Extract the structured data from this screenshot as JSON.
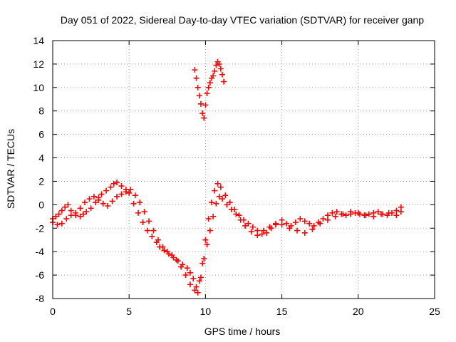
{
  "chart_data": {
    "type": "scatter",
    "title": "Day 051 of 2022, Sidereal Day-to-day VTEC variation (SDTVAR) for receiver ganp",
    "xlabel": "GPS time / hours",
    "ylabel": "SDTVAR / TECUs",
    "xlim": [
      0,
      25
    ],
    "ylim": [
      -8,
      14
    ],
    "xticks": [
      0,
      5,
      10,
      15,
      20,
      25
    ],
    "yticks": [
      -8,
      -6,
      -4,
      -2,
      0,
      2,
      4,
      6,
      8,
      10,
      12,
      14
    ],
    "grid": true,
    "marker": "+",
    "series": [
      {
        "name": "SDTVAR",
        "color": "#ff0000",
        "x": [
          0.0,
          0.2,
          0.4,
          0.6,
          0.8,
          1.0,
          1.2,
          1.5,
          1.8,
          2.0,
          2.2,
          2.5,
          2.8,
          3.0,
          3.2,
          3.5,
          3.8,
          4.0,
          4.2,
          4.5,
          4.8,
          5.0,
          5.3,
          5.6,
          5.9,
          6.2,
          6.5,
          6.8,
          7.0,
          7.3,
          7.6,
          7.9,
          8.2,
          8.5,
          8.8,
          9.0,
          9.2,
          9.4,
          9.6,
          9.8,
          10.0,
          10.2,
          10.4,
          10.6,
          10.8,
          11.0,
          11.3,
          11.6,
          11.9,
          12.2,
          12.5,
          12.8,
          13.1,
          13.4,
          13.7,
          14.0,
          14.3,
          14.6,
          15.0,
          15.3,
          15.6,
          15.9,
          16.2,
          16.5,
          16.8,
          17.1,
          17.4,
          17.7,
          18.0,
          18.3,
          18.6,
          18.9,
          19.2,
          19.5,
          19.8,
          20.1,
          20.4,
          20.7,
          21.0,
          21.3,
          21.6,
          21.9,
          22.2,
          22.5,
          22.8,
          0.0,
          0.3,
          0.6,
          0.9,
          1.2,
          1.5,
          1.8,
          2.1,
          2.4,
          2.7,
          3.0,
          3.3,
          3.6,
          3.9,
          4.2,
          4.5,
          4.8,
          5.1,
          5.4,
          5.7,
          6.0,
          6.3,
          6.6,
          6.9,
          7.2,
          7.5,
          7.8,
          8.1,
          8.4,
          8.7,
          9.0,
          9.3,
          9.5,
          9.7,
          9.9,
          10.1,
          10.3,
          10.5,
          10.7,
          10.9,
          11.1,
          11.4,
          11.7,
          12.0,
          12.3,
          12.6,
          13.0,
          13.4,
          13.8,
          14.2,
          14.6,
          15.0,
          15.5,
          16.0,
          16.5,
          17.0,
          17.5,
          18.0,
          18.5,
          19.0,
          19.5,
          20.0,
          20.5,
          21.0,
          21.5,
          22.0,
          22.5,
          22.8,
          9.3,
          9.4,
          9.5,
          9.6,
          9.7,
          9.8,
          9.9,
          10.0,
          10.1,
          10.2,
          10.3,
          10.4,
          10.5,
          10.6,
          10.7,
          10.8,
          10.9,
          11.0,
          11.1,
          11.2
        ],
        "y": [
          -1.2,
          -1.0,
          -0.8,
          -0.5,
          -0.2,
          0.0,
          -0.5,
          -0.9,
          -1.0,
          -0.8,
          -0.6,
          -0.3,
          0.2,
          0.6,
          0.9,
          1.2,
          1.5,
          1.8,
          1.9,
          1.6,
          1.3,
          1.0,
          0.1,
          -0.7,
          -1.5,
          -2.2,
          -2.7,
          -3.2,
          -3.6,
          -3.9,
          -4.2,
          -4.5,
          -4.8,
          -5.1,
          -5.4,
          -5.8,
          -6.3,
          -7.0,
          -6.5,
          -5.0,
          -3.0,
          -1.2,
          0.2,
          1.2,
          1.8,
          1.5,
          0.8,
          0.2,
          -0.4,
          -0.9,
          -1.3,
          -1.6,
          -1.9,
          -2.2,
          -2.5,
          -2.4,
          -2.0,
          -1.7,
          -1.3,
          -1.6,
          -1.8,
          -1.5,
          -1.2,
          -1.4,
          -1.6,
          -1.8,
          -1.5,
          -1.2,
          -0.9,
          -0.7,
          -0.6,
          -0.8,
          -0.9,
          -0.8,
          -0.7,
          -0.8,
          -0.9,
          -0.8,
          -0.7,
          -0.6,
          -0.8,
          -0.9,
          -0.7,
          -0.5,
          -0.2,
          -1.5,
          -1.7,
          -1.6,
          -1.2,
          -0.9,
          -0.7,
          -0.3,
          0.2,
          0.5,
          0.7,
          0.4,
          0.1,
          -0.1,
          0.3,
          0.7,
          0.9,
          1.1,
          1.3,
          0.8,
          0.2,
          -0.6,
          -1.4,
          -2.2,
          -3.0,
          -3.6,
          -4.0,
          -4.3,
          -4.7,
          -5.3,
          -6.0,
          -6.8,
          -7.3,
          -7.5,
          -6.2,
          -4.6,
          -3.4,
          -2.2,
          -1.0,
          0.1,
          0.7,
          0.5,
          0.0,
          -0.4,
          -0.8,
          -1.3,
          -1.8,
          -2.3,
          -2.6,
          -2.2,
          -1.9,
          -1.6,
          -1.7,
          -2.0,
          -2.2,
          -2.4,
          -2.1,
          -1.6,
          -1.3,
          -1.0,
          -0.8,
          -0.6,
          -0.7,
          -0.9,
          -1.0,
          -0.8,
          -0.7,
          -0.9,
          -0.6,
          11.5,
          10.8,
          10.0,
          9.3,
          8.6,
          7.8,
          7.4,
          8.5,
          9.5,
          10.0,
          10.4,
          10.8,
          11.0,
          11.4,
          11.9,
          12.2,
          12.0,
          11.6,
          11.1,
          10.5
        ]
      }
    ]
  }
}
